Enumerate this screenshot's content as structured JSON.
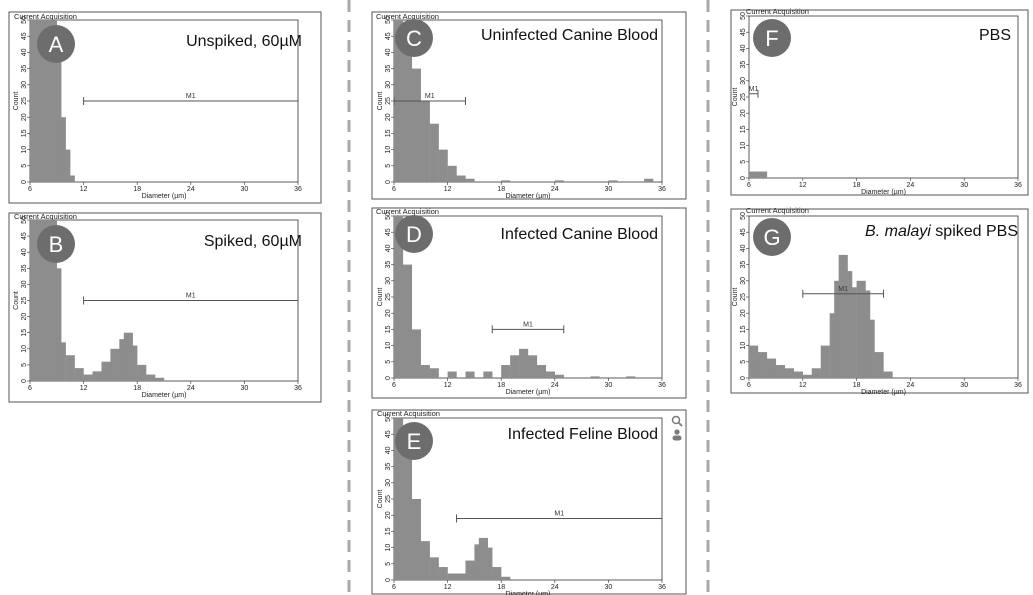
{
  "figure": {
    "acquisition_title": "Current Acquisition",
    "xlabel": "Diameter (µm)",
    "ylabel": "Count",
    "xticks": [
      "6",
      "12",
      "18",
      "24",
      "30",
      "36"
    ],
    "yticks": [
      "0",
      "5",
      "10",
      "15",
      "20",
      "25",
      "30",
      "35",
      "40",
      "45",
      "50"
    ],
    "gate_label": "M1",
    "bar_color": "#8d8d8d"
  },
  "panels": [
    {
      "id": "A",
      "letter": "A",
      "title": "Unspiked, 60µM",
      "title_italic": "",
      "title_rest": ""
    },
    {
      "id": "B",
      "letter": "B",
      "title": "Spiked, 60µM",
      "title_italic": "",
      "title_rest": ""
    },
    {
      "id": "C",
      "letter": "C",
      "title": "Uninfected Canine Blood",
      "title_italic": "",
      "title_rest": ""
    },
    {
      "id": "D",
      "letter": "D",
      "title": "Infected Canine Blood",
      "title_italic": "",
      "title_rest": ""
    },
    {
      "id": "E",
      "letter": "E",
      "title": "Infected Feline Blood",
      "title_italic": "",
      "title_rest": ""
    },
    {
      "id": "F",
      "letter": "F",
      "title": "PBS",
      "title_italic": "",
      "title_rest": ""
    },
    {
      "id": "G",
      "letter": "G",
      "title": "",
      "title_italic": "B. malayi",
      "title_rest": " spiked PBS"
    }
  ],
  "icons": [
    "magnifier-icon",
    "user-icon"
  ],
  "chart_data": [
    {
      "type": "bar",
      "panel": "A",
      "xlabel": "Diameter (µm)",
      "ylabel": "Count",
      "xlim": [
        6,
        36
      ],
      "ylim": [
        0,
        50
      ],
      "bins": [
        [
          6,
          50
        ],
        [
          7,
          50
        ],
        [
          8,
          50
        ],
        [
          8.5,
          45
        ],
        [
          9,
          20
        ],
        [
          9.5,
          10
        ],
        [
          10,
          2
        ]
      ],
      "gate": {
        "label": "M1",
        "x": [
          12,
          36
        ],
        "y": 25
      }
    },
    {
      "type": "bar",
      "panel": "B",
      "xlabel": "Diameter (µm)",
      "ylabel": "Count",
      "xlim": [
        6,
        36
      ],
      "ylim": [
        0,
        50
      ],
      "bins": [
        [
          6,
          50
        ],
        [
          7,
          50
        ],
        [
          8,
          50
        ],
        [
          8.5,
          35
        ],
        [
          9,
          12
        ],
        [
          10,
          8
        ],
        [
          11,
          4
        ],
        [
          12,
          2
        ],
        [
          13,
          3
        ],
        [
          14,
          6
        ],
        [
          15,
          10
        ],
        [
          16,
          13
        ],
        [
          16.5,
          15
        ],
        [
          17,
          11
        ],
        [
          18,
          5
        ],
        [
          19,
          2
        ],
        [
          20,
          1
        ]
      ],
      "gate": {
        "label": "M1",
        "x": [
          12,
          36
        ],
        "y": 25
      }
    },
    {
      "type": "bar",
      "panel": "C",
      "xlabel": "Diameter (µm)",
      "ylabel": "Count",
      "xlim": [
        6,
        36
      ],
      "ylim": [
        0,
        50
      ],
      "bins": [
        [
          6,
          50
        ],
        [
          7,
          45
        ],
        [
          8,
          35
        ],
        [
          9,
          25
        ],
        [
          10,
          18
        ],
        [
          11,
          10
        ],
        [
          12,
          5
        ],
        [
          13,
          2
        ],
        [
          14,
          1
        ],
        [
          18,
          0.5
        ],
        [
          24,
          0.5
        ],
        [
          30,
          0.5
        ],
        [
          34,
          1
        ]
      ],
      "gate": {
        "label": "M1",
        "x": [
          6,
          14
        ],
        "y": 25
      }
    },
    {
      "type": "bar",
      "panel": "D",
      "xlabel": "Diameter (µm)",
      "ylabel": "Count",
      "xlim": [
        6,
        36
      ],
      "ylim": [
        0,
        50
      ],
      "bins": [
        [
          6,
          50
        ],
        [
          7,
          35
        ],
        [
          8,
          15
        ],
        [
          9,
          4
        ],
        [
          10,
          3
        ],
        [
          12,
          2
        ],
        [
          14,
          2
        ],
        [
          16,
          2
        ],
        [
          18,
          4
        ],
        [
          19,
          7
        ],
        [
          20,
          9
        ],
        [
          21,
          7
        ],
        [
          22,
          4
        ],
        [
          23,
          2
        ],
        [
          24,
          1
        ],
        [
          28,
          0.5
        ],
        [
          32,
          0.5
        ]
      ],
      "gate": {
        "label": "M1",
        "x": [
          17,
          25
        ],
        "y": 15
      }
    },
    {
      "type": "bar",
      "panel": "E",
      "xlabel": "Diameter (µm)",
      "ylabel": "Count",
      "xlim": [
        6,
        36
      ],
      "ylim": [
        0,
        50
      ],
      "bins": [
        [
          6,
          50
        ],
        [
          7,
          40
        ],
        [
          8,
          25
        ],
        [
          9,
          12
        ],
        [
          10,
          7
        ],
        [
          11,
          4
        ],
        [
          12,
          2
        ],
        [
          13,
          2
        ],
        [
          14,
          6
        ],
        [
          15,
          11
        ],
        [
          15.5,
          13
        ],
        [
          16,
          10
        ],
        [
          17,
          4
        ],
        [
          18,
          1
        ]
      ],
      "gate": {
        "label": "M1",
        "x": [
          13,
          36
        ],
        "y": 19
      }
    },
    {
      "type": "bar",
      "panel": "F",
      "xlabel": "Diameter (µm)",
      "ylabel": "Count",
      "xlim": [
        6,
        36
      ],
      "ylim": [
        0,
        50
      ],
      "bins": [
        [
          6,
          2
        ],
        [
          7,
          2
        ]
      ],
      "gate": {
        "label": "M1",
        "x": [
          6,
          7
        ],
        "y": 26
      }
    },
    {
      "type": "bar",
      "panel": "G",
      "xlabel": "Diameter (µm)",
      "ylabel": "Count",
      "xlim": [
        6,
        36
      ],
      "ylim": [
        0,
        50
      ],
      "bins": [
        [
          6,
          10
        ],
        [
          7,
          8
        ],
        [
          8,
          6
        ],
        [
          9,
          4
        ],
        [
          10,
          3
        ],
        [
          11,
          2
        ],
        [
          12,
          1
        ],
        [
          13,
          3
        ],
        [
          14,
          10
        ],
        [
          15,
          20
        ],
        [
          15.5,
          30
        ],
        [
          16,
          38
        ],
        [
          16.5,
          33
        ],
        [
          17,
          28
        ],
        [
          18,
          30
        ],
        [
          18.5,
          27
        ],
        [
          19,
          18
        ],
        [
          20,
          8
        ],
        [
          21,
          2
        ]
      ],
      "gate": {
        "label": "M1",
        "x": [
          12,
          21
        ],
        "y": 26
      }
    }
  ]
}
